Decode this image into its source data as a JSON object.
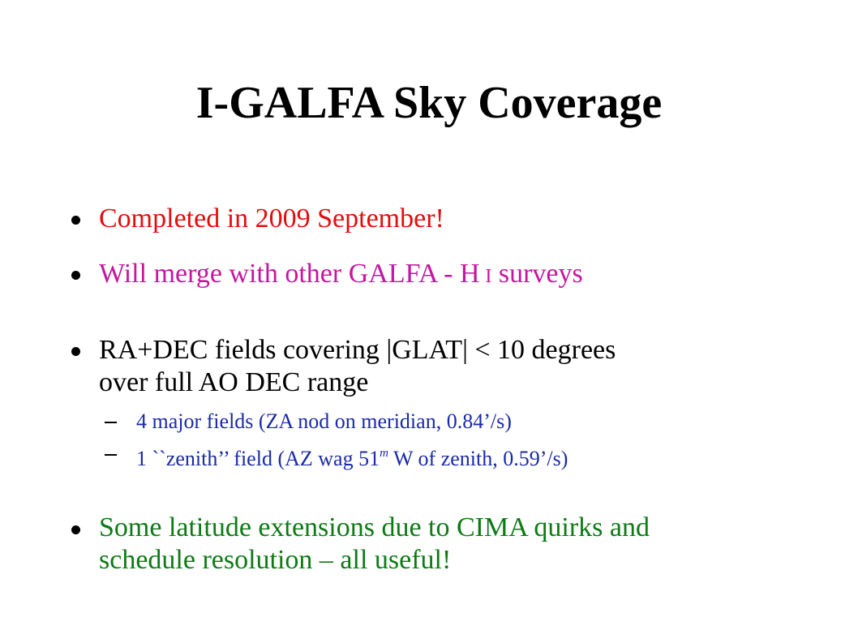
{
  "slide": {
    "title": "I-GALFA Sky Coverage",
    "colors": {
      "red": "#e30d0d",
      "magenta": "#c5169f",
      "black": "#000000",
      "blue": "#1a2aa8",
      "green": "#0d7a14"
    },
    "bullets": [
      {
        "text": "Completed in 2009 September!"
      },
      {
        "text_before": "Will merge with other GALFA - H",
        "text_small": "I",
        "text_after": " surveys"
      },
      {
        "line1": "RA+DEC fields covering |GLAT| < 10 degrees",
        "line2": "over full AO DEC range"
      },
      {
        "line1": "Some latitude extensions due to CIMA quirks and",
        "line2": "schedule resolution – all useful!"
      }
    ],
    "subbullets": [
      {
        "text": "4 major fields (ZA nod on meridian, 0.84’/s)"
      },
      {
        "text_before": "1 ``zenith’’ field (AZ wag 51",
        "sup": "m",
        "text_after": " W of zenith, 0.59’/s)"
      }
    ]
  }
}
